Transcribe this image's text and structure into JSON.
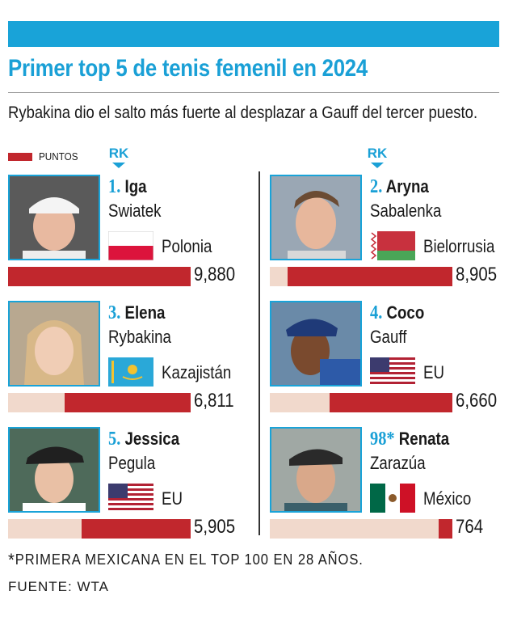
{
  "title": "Primer top 5 de tenis femenil en 2024",
  "subtitle": "Rybakina dio el salto más fuerte al desplazar a Gauff del tercer puesto.",
  "legend": {
    "label": "PUNTOS",
    "color": "#c1272d"
  },
  "rk_label": "RK",
  "colors": {
    "accent": "#1aa0d6",
    "bar": "#c1272d",
    "track": "#f1d9cc"
  },
  "chart_data": {
    "type": "bar",
    "title": "Primer top 5 de tenis femenil en 2024",
    "subtitle": "Rybakina dio el salto más fuerte al desplazar a Gauff del tercer puesto.",
    "xlabel": "",
    "ylabel": "",
    "ylim": [
      0,
      9880
    ],
    "categories": [
      "Iga Swiatek",
      "Aryna Sabalenka",
      "Elena Rybakina",
      "Coco Gauff",
      "Jessica Pegula",
      "Renata Zarazúa"
    ],
    "series": [
      {
        "name": "PUNTOS",
        "values": [
          9880,
          8905,
          6811,
          6660,
          5905,
          764
        ]
      }
    ],
    "legend": "top-left",
    "grid": false
  },
  "players": [
    {
      "rank": "1.",
      "first": "Iga",
      "last": "Swiatek",
      "country": "Polonia",
      "flag": "poland-flag",
      "points": 9880,
      "points_label": "9,880"
    },
    {
      "rank": "2.",
      "first": "Aryna",
      "last": "Sabalenka",
      "country": "Bielorrusia",
      "flag": "belarus-flag",
      "points": 8905,
      "points_label": "8,905"
    },
    {
      "rank": "3.",
      "first": "Elena",
      "last": "Rybakina",
      "country": "Kazajistán",
      "flag": "kazakhstan-flag",
      "points": 6811,
      "points_label": "6,811"
    },
    {
      "rank": "4.",
      "first": "Coco",
      "last": "Gauff",
      "country": "EU",
      "flag": "usa-flag",
      "points": 6660,
      "points_label": "6,660"
    },
    {
      "rank": "5.",
      "first": "Jessica",
      "last": "Pegula",
      "country": "EU",
      "flag": "usa-flag",
      "points": 5905,
      "points_label": "5,905"
    },
    {
      "rank": "98*",
      "first": "Renata",
      "last": "Zarazúa",
      "country": "México",
      "flag": "mexico-flag",
      "points": 764,
      "points_label": "764"
    }
  ],
  "footnote": {
    "mark": "*",
    "text": "PRIMERA MEXICANA EN EL TOP 100 EN 28 AÑOS."
  },
  "source": "FUENTE: WTA"
}
